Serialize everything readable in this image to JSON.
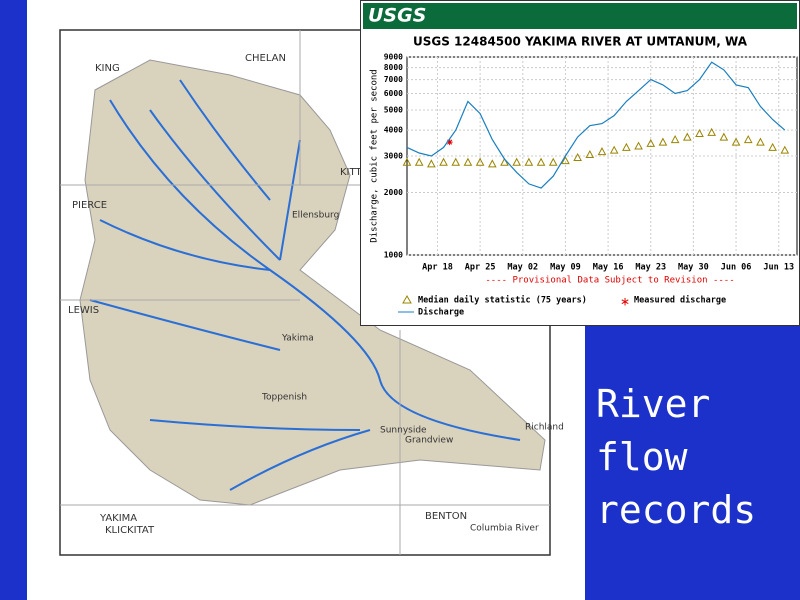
{
  "slide": {
    "title": "River flow records"
  },
  "map": {
    "labels": [
      "KING",
      "CHELAN",
      "KITTITAS",
      "PIERCE",
      "LEWIS",
      "Ellensburg",
      "Yakima",
      "Toppenish",
      "Sunnyside",
      "Grandview",
      "Richland",
      "YAKIMA",
      "KLICKITAT",
      "BENTON",
      "Columbia River"
    ]
  },
  "chart_data": {
    "type": "line",
    "brand": "USGS",
    "title": "USGS 12484500 YAKIMA RIVER AT UMTANUM, WA",
    "subtitle": "---- Provisional Data Subject to Revision ----",
    "y_label": "Discharge, cubic feet per second",
    "log_y": true,
    "ylim": [
      1000,
      9000
    ],
    "yticks": [
      1000,
      2000,
      3000,
      4000,
      5000,
      6000,
      7000,
      8000,
      9000
    ],
    "xlim": [
      "Apr 13",
      "Jun 16"
    ],
    "xticks": [
      "Apr 18",
      "Apr 25",
      "May 02",
      "May 09",
      "May 16",
      "May 23",
      "May 30",
      "Jun 06",
      "Jun 13"
    ],
    "x": [
      "Apr 13",
      "Apr 15",
      "Apr 17",
      "Apr 19",
      "Apr 21",
      "Apr 23",
      "Apr 25",
      "Apr 27",
      "Apr 29",
      "May 01",
      "May 03",
      "May 05",
      "May 07",
      "May 09",
      "May 11",
      "May 13",
      "May 15",
      "May 17",
      "May 19",
      "May 21",
      "May 23",
      "May 25",
      "May 27",
      "May 29",
      "May 31",
      "Jun 02",
      "Jun 04",
      "Jun 06",
      "Jun 08",
      "Jun 10",
      "Jun 12",
      "Jun 14"
    ],
    "series": [
      {
        "name": "Median daily statistic (75 years)",
        "color": "#9a8400",
        "style": "triangle",
        "values": [
          2800,
          2800,
          2750,
          2800,
          2800,
          2800,
          2800,
          2750,
          2800,
          2800,
          2800,
          2800,
          2800,
          2850,
          2950,
          3050,
          3150,
          3200,
          3300,
          3350,
          3450,
          3500,
          3600,
          3700,
          3850,
          3900,
          3700,
          3500,
          3600,
          3500,
          3300,
          3200
        ]
      },
      {
        "name": "Measured discharge",
        "color": "#e00000",
        "style": "star",
        "x": [
          "Apr 20"
        ],
        "values": [
          3500
        ]
      },
      {
        "name": "Discharge",
        "color": "#1a7fc1",
        "style": "line",
        "values": [
          3300,
          3100,
          3000,
          3300,
          4000,
          5500,
          4800,
          3600,
          2900,
          2500,
          2200,
          2100,
          2400,
          3000,
          3700,
          4200,
          4300,
          4700,
          5500,
          6200,
          7000,
          6600,
          6000,
          6200,
          7000,
          8500,
          7800,
          6600,
          6400,
          5200,
          4500,
          4000
        ]
      }
    ]
  }
}
